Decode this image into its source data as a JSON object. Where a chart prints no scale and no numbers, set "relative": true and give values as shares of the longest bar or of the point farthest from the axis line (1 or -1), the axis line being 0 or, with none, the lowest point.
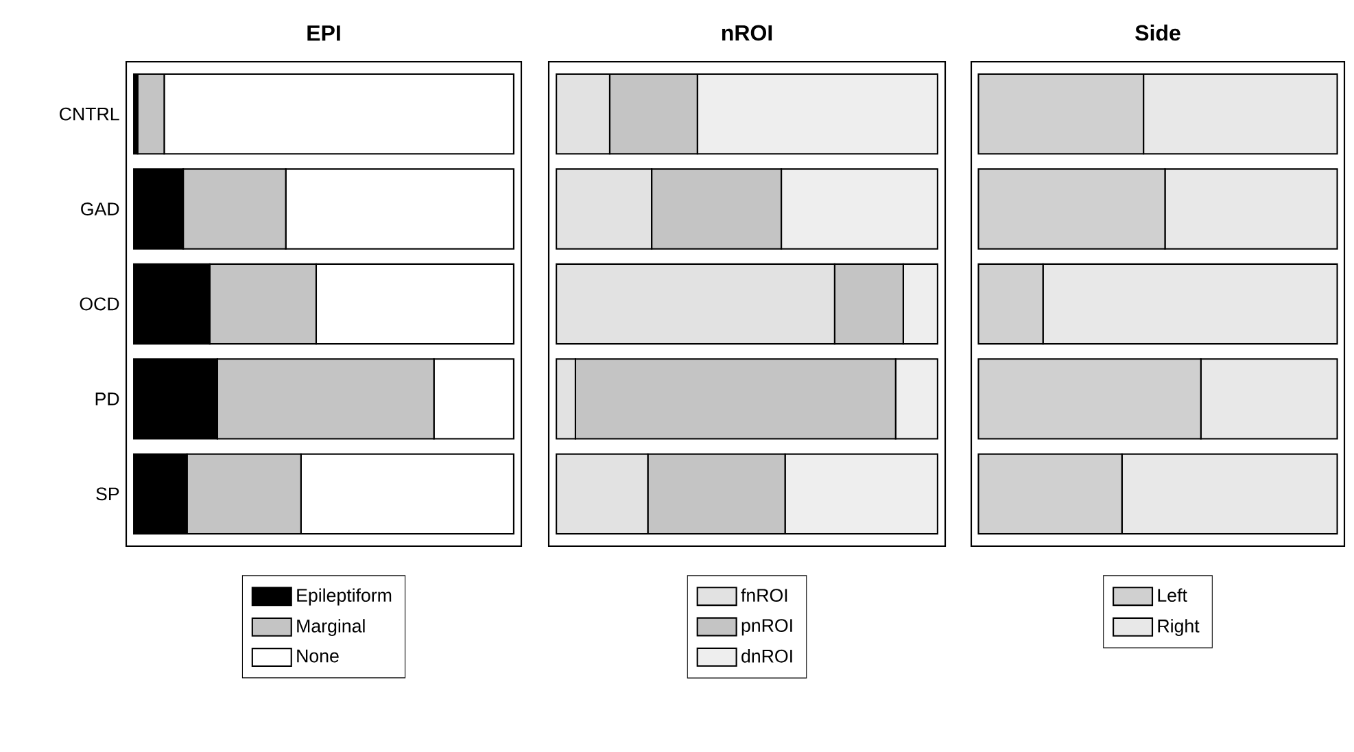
{
  "chart_data": [
    {
      "type": "bar",
      "orientation": "horizontal",
      "stacked": true,
      "relative": true,
      "title": "EPI",
      "categories": [
        "CNTRL",
        "GAD",
        "OCD",
        "PD",
        "SP"
      ],
      "tick_labels": "y",
      "legend": "bottom",
      "series": [
        {
          "name": "Epileptiform",
          "color": "#000000",
          "values": [
            0.01,
            0.13,
            0.2,
            0.22,
            0.14
          ]
        },
        {
          "name": "Marginal",
          "color": "#c4c4c4",
          "values": [
            0.07,
            0.27,
            0.28,
            0.57,
            0.3
          ]
        },
        {
          "name": "None",
          "color": "#ffffff",
          "values": [
            0.92,
            0.6,
            0.52,
            0.21,
            0.56
          ]
        }
      ]
    },
    {
      "type": "bar",
      "orientation": "horizontal",
      "stacked": true,
      "relative": true,
      "title": "nROI",
      "categories": [
        null,
        null,
        null,
        null,
        null
      ],
      "legend": "bottom",
      "series": [
        {
          "name": "fnROI",
          "color": "#e2e2e2",
          "values": [
            0.14,
            0.25,
            0.73,
            0.05,
            0.24
          ]
        },
        {
          "name": "pnROI",
          "color": "#c4c4c4",
          "values": [
            0.23,
            0.34,
            0.18,
            0.84,
            0.36
          ]
        },
        {
          "name": "dnROI",
          "color": "#eeeeee",
          "values": [
            0.63,
            0.41,
            0.09,
            0.11,
            0.4
          ]
        }
      ]
    },
    {
      "type": "bar",
      "orientation": "horizontal",
      "stacked": true,
      "relative": true,
      "title": "Side",
      "categories": [
        null,
        null,
        null,
        null,
        null
      ],
      "legend": "bottom",
      "series": [
        {
          "name": "Left",
          "color": "#d0d0d0",
          "values": [
            0.46,
            0.52,
            0.18,
            0.62,
            0.4
          ]
        },
        {
          "name": "Right",
          "color": "#e8e8e8",
          "values": [
            0.54,
            0.48,
            0.82,
            0.38,
            0.6
          ]
        }
      ]
    }
  ]
}
